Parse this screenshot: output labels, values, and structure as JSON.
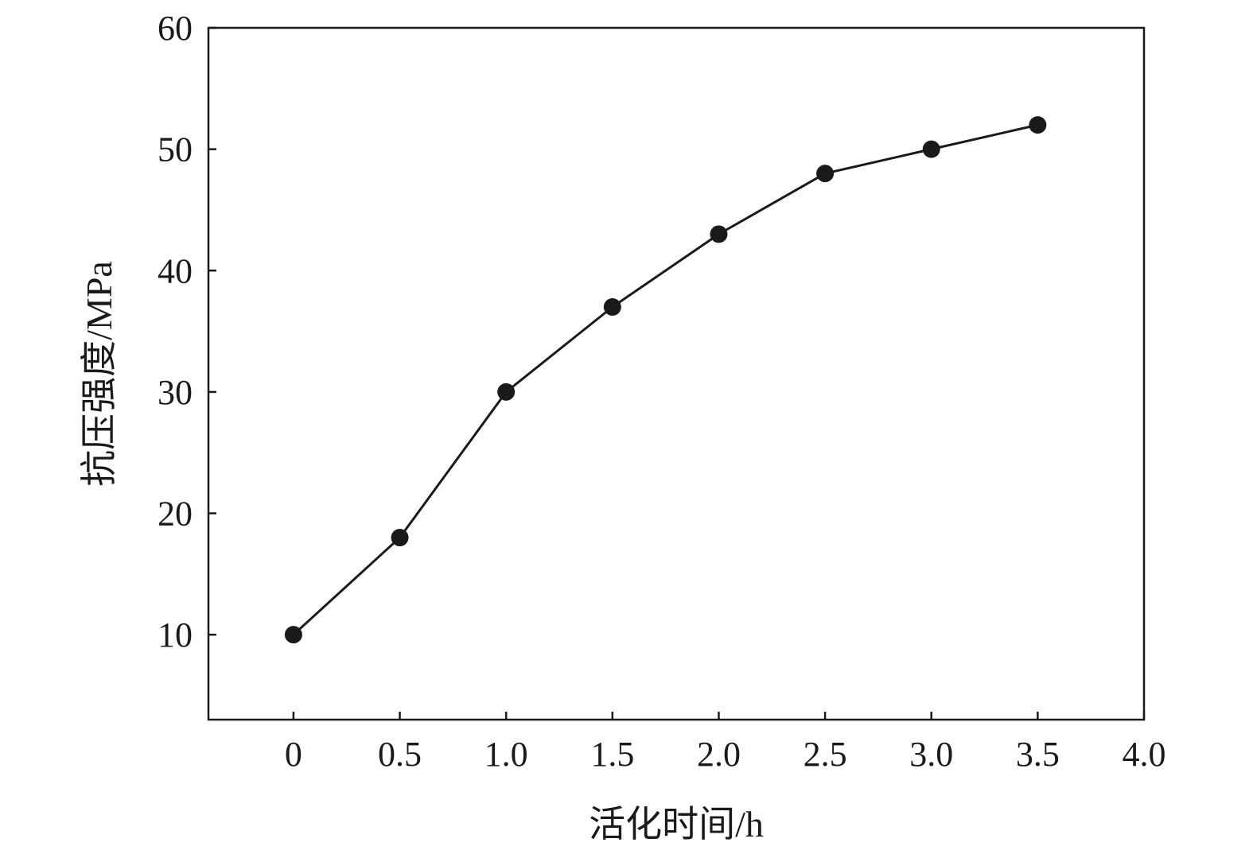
{
  "chart_data": {
    "type": "line",
    "title": "",
    "xlabel": "活化时间/h",
    "ylabel": "抗压强度/MPa",
    "x": [
      0,
      0.5,
      1.0,
      1.5,
      2.0,
      2.5,
      3.0,
      3.5
    ],
    "series": [
      {
        "name": "抗压强度",
        "values": [
          10,
          18,
          30,
          37,
          43,
          48,
          50,
          52
        ],
        "color": "#1a1a1a",
        "marker": "circle"
      }
    ],
    "xlim": [
      -0.4,
      4.0
    ],
    "ylim": [
      3,
      60
    ],
    "xticks": [
      0,
      0.5,
      1.0,
      1.5,
      2.0,
      2.5,
      3.0,
      3.5,
      4.0
    ],
    "xtick_labels": [
      "0",
      "0.5",
      "1.0",
      "1.5",
      "2.0",
      "2.5",
      "3.0",
      "3.5",
      "4.0"
    ],
    "yticks": [
      10,
      20,
      30,
      40,
      50,
      60
    ],
    "ytick_labels": [
      "10",
      "20",
      "30",
      "40",
      "50",
      "60"
    ],
    "grid": false,
    "legend": "none"
  }
}
